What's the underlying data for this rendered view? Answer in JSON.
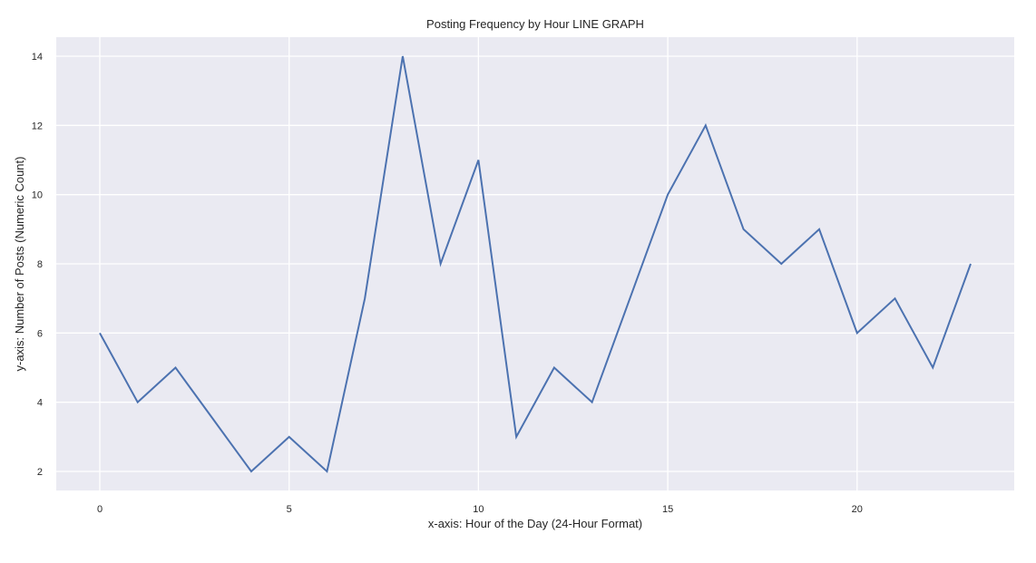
{
  "chart_data": {
    "type": "line",
    "title": "Posting Frequency by Hour LINE GRAPH",
    "xlabel": "x-axis: Hour of the Day (24-Hour Format)",
    "ylabel": "y-axis: Number of Posts (Numeric Count)",
    "x": [
      0,
      1,
      2,
      3,
      4,
      5,
      6,
      7,
      8,
      9,
      10,
      11,
      12,
      13,
      14,
      15,
      16,
      17,
      18,
      19,
      20,
      21,
      22,
      23
    ],
    "values": [
      6,
      4,
      5,
      3.5,
      2,
      3,
      2,
      7,
      14,
      8,
      11,
      3,
      5,
      4,
      7,
      10,
      12,
      9,
      8,
      9,
      6,
      7,
      5,
      8
    ],
    "xlim": [
      -1.15,
      24.15
    ],
    "ylim": [
      1.45,
      14.55
    ],
    "xticks": [
      0,
      5,
      10,
      15,
      20
    ],
    "yticks": [
      2,
      4,
      6,
      8,
      10,
      12,
      14
    ],
    "grid": true,
    "line_color": "#4c72b0",
    "background_color": "#eaeaf2"
  }
}
